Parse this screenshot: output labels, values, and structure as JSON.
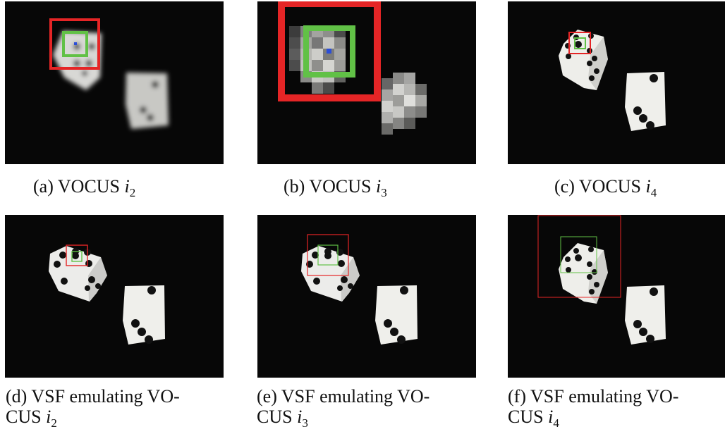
{
  "figure": {
    "panels": [
      {
        "caption_prefix": "(a) VOCUS",
        "caption_var": "i",
        "caption_sub": "2"
      },
      {
        "caption_prefix": "(b) VOCUS",
        "caption_var": "i",
        "caption_sub": "3"
      },
      {
        "caption_prefix": "(c) VOCUS",
        "caption_var": "i",
        "caption_sub": "4"
      },
      {
        "caption_line1": "(d) VSF emulating VO-",
        "caption_line2_prefix": "CUS",
        "caption_var": "i",
        "caption_sub": "2"
      },
      {
        "caption_line1": "(e) VSF emulating VO-",
        "caption_line2_prefix": "CUS",
        "caption_var": "i",
        "caption_sub": "3"
      },
      {
        "caption_line1": "(f) VSF emulating VO-",
        "caption_line2_prefix": "CUS",
        "caption_var": "i",
        "caption_sub": "4"
      }
    ],
    "colors": {
      "background": "#ffffff",
      "image_background": "#070707",
      "die_face": "#e8e8e4",
      "die_shadow": "#a9a9a4",
      "pip": "#111111",
      "outer_box": "#e52526",
      "inner_box": "#61c146",
      "center_marker": "#2b4ed8"
    }
  }
}
